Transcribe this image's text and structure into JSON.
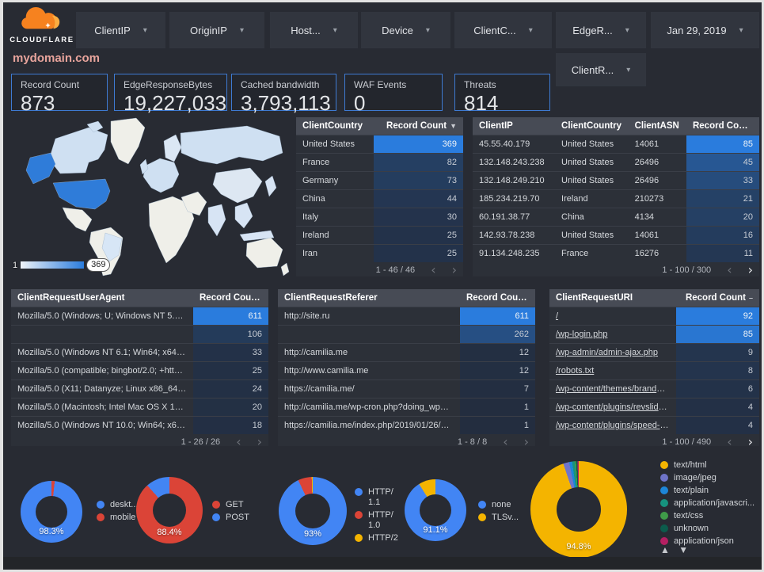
{
  "branding": {
    "logo_text": "CLOUDFLARE"
  },
  "header": {
    "domain": "mydomain.com"
  },
  "icons": {
    "caret_down": "▾",
    "sort_desc": "▼",
    "sort_none": "–",
    "chev_left": "‹",
    "chev_right": "›",
    "legend_scroll": "▲ ▼"
  },
  "filters": {
    "controls": [
      "ClientIP",
      "OriginIP",
      "Host...",
      "Device",
      "ClientC...",
      "EdgeR..."
    ],
    "date_label": "Jan 29, 2019",
    "row2_label": "ClientR..."
  },
  "scorecards": [
    {
      "label": "Record Count",
      "value": "873"
    },
    {
      "label": "EdgeResponseBytes",
      "value": "19,227,033"
    },
    {
      "label": "Cached bandwidth",
      "value": "3,793,113"
    },
    {
      "label": "WAF Events",
      "value": "0"
    },
    {
      "label": "Threats",
      "value": "814"
    }
  ],
  "map": {
    "legend_min": "1",
    "legend_max": "369",
    "region_fills": {
      "greenland": "#efefe9",
      "canada": "#cfe0f2",
      "alaska": "#2f7cd9",
      "usa": "#2f7cd9",
      "mexico": "#efefe9",
      "south_america": "#efefe9",
      "brazil": "#d7e6f6",
      "africa": "#efefe9",
      "europe": "#cfe0f2",
      "uk": "#cfe0f2",
      "scandinavia": "#dbe7f4",
      "russia": "#cfe0f2",
      "middle_east": "#efefe9",
      "india": "#d7e4f4",
      "china": "#dde7f2",
      "se_asia": "#d7e4f4",
      "indonesia": "#d7e4f4",
      "japan": "#d7e4f4",
      "australia": "#efefe9",
      "new_zealand": "#efefe9"
    }
  },
  "tables": {
    "client_country": {
      "columns": [
        {
          "label": "ClientCountry"
        },
        {
          "label": "Record Count",
          "sort": "desc"
        }
      ],
      "rows": [
        [
          "United States",
          369
        ],
        [
          "France",
          82
        ],
        [
          "Germany",
          73
        ],
        [
          "China",
          44
        ],
        [
          "Italy",
          30
        ],
        [
          "Ireland",
          25
        ],
        [
          "Iran",
          25
        ]
      ],
      "max": 369,
      "pagination": {
        "label": "1 - 46 / 46",
        "prev_enabled": false,
        "next_enabled": false
      }
    },
    "client_ip": {
      "columns": [
        {
          "label": "ClientIP"
        },
        {
          "label": "ClientCountry"
        },
        {
          "label": "ClientASN"
        },
        {
          "label": "Record Count",
          "sort": "none"
        }
      ],
      "rows": [
        [
          "45.55.40.179",
          "United States",
          "14061",
          85
        ],
        [
          "132.148.243.238",
          "United States",
          "26496",
          45
        ],
        [
          "132.148.249.210",
          "United States",
          "26496",
          33
        ],
        [
          "185.234.219.70",
          "Ireland",
          "210273",
          21
        ],
        [
          "60.191.38.77",
          "China",
          "4134",
          20
        ],
        [
          "142.93.78.238",
          "United States",
          "14061",
          16
        ],
        [
          "91.134.248.235",
          "France",
          "16276",
          11
        ]
      ],
      "max": 85,
      "pagination": {
        "label": "1 - 100 / 300",
        "prev_enabled": false,
        "next_enabled": true
      }
    },
    "user_agent": {
      "columns": [
        {
          "label": "ClientRequestUserAgent"
        },
        {
          "label": "Record Count",
          "sort": "desc"
        }
      ],
      "rows": [
        [
          "Mozilla/5.0 (Windows; U; Windows NT 5.1; en-U...",
          611
        ],
        [
          "",
          106
        ],
        [
          "Mozilla/5.0 (Windows NT 6.1; Win64; x64; rv:64...",
          33
        ],
        [
          "Mozilla/5.0 (compatible; bingbot/2.0; +http://w...",
          25
        ],
        [
          "Mozilla/5.0 (X11; Datanyze; Linux x86_64) Appl...",
          24
        ],
        [
          "Mozilla/5.0 (Macintosh; Intel Mac OS X 10.11; r...",
          20
        ],
        [
          "Mozilla/5.0 (Windows NT 10.0; Win64; x64) App...",
          18
        ]
      ],
      "max": 611,
      "pagination": {
        "label": "1 - 26 / 26",
        "prev_enabled": false,
        "next_enabled": false
      }
    },
    "referer": {
      "columns": [
        {
          "label": "ClientRequestReferer"
        },
        {
          "label": "Record Count",
          "sort": "desc"
        }
      ],
      "rows": [
        [
          "http://site.ru",
          611
        ],
        [
          "",
          262
        ],
        [
          "http://camilia.me",
          12
        ],
        [
          "http://www.camilia.me",
          12
        ],
        [
          "https://camilia.me/",
          7
        ],
        [
          "http://camilia.me/wp-cron.php?doing_wp_cron...",
          1
        ],
        [
          "https://camilia.me/index.php/2019/01/26/stor...",
          1
        ]
      ],
      "max": 611,
      "pagination": {
        "label": "1 - 8 / 8",
        "prev_enabled": false,
        "next_enabled": false
      }
    },
    "uri": {
      "columns": [
        {
          "label": "ClientRequestURI"
        },
        {
          "label": "Record Count",
          "sort": "none"
        }
      ],
      "links": true,
      "rows": [
        [
          "/",
          92
        ],
        [
          "/wp-login.php",
          85
        ],
        [
          "/wp-admin/admin-ajax.php",
          9
        ],
        [
          "/robots.txt",
          8
        ],
        [
          "/wp-content/themes/brandon/plu...",
          6
        ],
        [
          "/wp-content/plugins/revslider/rs-p...",
          4
        ],
        [
          "/wp-content/plugins/speed-booste...",
          4
        ]
      ],
      "max": 92,
      "pagination": {
        "label": "1 - 100 / 490",
        "prev_enabled": false,
        "next_enabled": true
      }
    }
  },
  "chart_data": [
    {
      "type": "pie",
      "name": "device-type",
      "center_label": "98.3%",
      "from_deg": 6.1,
      "slices": [
        {
          "label": "deskt...",
          "color": "#4285f4",
          "value": 98.3
        },
        {
          "label": "mobile",
          "color": "#db4437",
          "value": 1.7
        }
      ]
    },
    {
      "type": "pie",
      "name": "request-method",
      "center_label": "88.4%",
      "from_deg": 0,
      "slices": [
        {
          "label": "GET",
          "color": "#db4437",
          "value": 88.4
        },
        {
          "label": "POST",
          "color": "#4285f4",
          "value": 11.6
        }
      ]
    },
    {
      "type": "pie",
      "name": "http-version",
      "center_label": "93%",
      "from_deg": 0,
      "slices": [
        {
          "label": "HTTP/\n1.1",
          "color": "#4285f4",
          "value": 93
        },
        {
          "label": "HTTP/\n1.0",
          "color": "#db4437",
          "value": 6.5
        },
        {
          "label": "HTTP/2",
          "color": "#f4b400",
          "value": 0.5
        }
      ]
    },
    {
      "type": "pie",
      "name": "tls-version",
      "center_label": "91.1%",
      "from_deg": 0,
      "slices": [
        {
          "label": "none",
          "color": "#4285f4",
          "value": 91.1
        },
        {
          "label": "TLSv...",
          "color": "#f4b400",
          "value": 8.9
        }
      ]
    },
    {
      "type": "pie",
      "name": "content-type",
      "center_label": "94.8%",
      "from_deg": 0,
      "scroll_arrows": true,
      "slices": [
        {
          "label": "text/html",
          "color": "#f4b400",
          "value": 94.8
        },
        {
          "label": "image/jpeg",
          "color": "#6f74c9",
          "value": 2.0
        },
        {
          "label": "text/plain",
          "color": "#1d86d8",
          "value": 1.0
        },
        {
          "label": "application/javascri...",
          "color": "#16937f",
          "value": 0.8
        },
        {
          "label": "text/css",
          "color": "#3f9b49",
          "value": 0.5
        },
        {
          "label": "unknown",
          "color": "#0c5c4c",
          "value": 0.5
        },
        {
          "label": "application/json",
          "color": "#b41f62",
          "value": 0.4
        }
      ]
    }
  ]
}
